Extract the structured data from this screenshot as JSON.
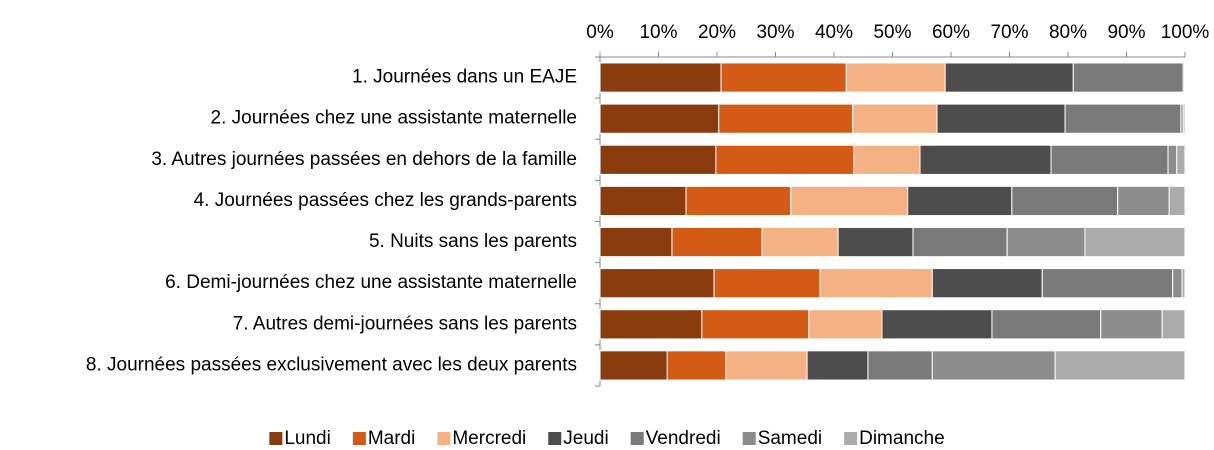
{
  "chart_data": {
    "type": "stacked_bar_horizontal",
    "categories": [
      "1. Journées dans un EAJE",
      "2. Journées chez une assistante maternelle",
      "3. Autres journées passées en dehors de la famille",
      "4. Journées passées chez les grands-parents",
      "5. Nuits sans les parents",
      "6. Demi-journées chez une assistante maternelle",
      "7. Autres demi-journées sans les parents",
      "8. Journées passées exclusivement avec les deux parents"
    ],
    "series": [
      {
        "name": "Lundi",
        "color": "#8b3c0f",
        "values": [
          20.7,
          20.3,
          19.8,
          14.7,
          12.3,
          19.5,
          17.4,
          11.5
        ]
      },
      {
        "name": "Mardi",
        "color": "#d35b16",
        "values": [
          21.4,
          22.9,
          23.6,
          17.9,
          15.4,
          18.1,
          18.3,
          10.0
        ]
      },
      {
        "name": "Mercredi",
        "color": "#f4b183",
        "values": [
          16.9,
          14.4,
          11.3,
          20.0,
          13.0,
          19.2,
          12.5,
          13.9
        ]
      },
      {
        "name": "Jeudi",
        "color": "#4d4d4d",
        "values": [
          21.9,
          21.9,
          22.4,
          17.8,
          12.8,
          18.8,
          18.8,
          10.4
        ]
      },
      {
        "name": "Vendredi",
        "color": "#7a7a7a",
        "values": [
          18.8,
          19.8,
          20.0,
          18.1,
          16.1,
          22.3,
          18.6,
          11.0
        ]
      },
      {
        "name": "Samedi",
        "color": "#8c8c8c",
        "values": [
          0.2,
          0.4,
          1.5,
          8.8,
          13.3,
          1.6,
          10.5,
          21.0
        ]
      },
      {
        "name": "Dimanche",
        "color": "#ababab",
        "values": [
          0.1,
          0.3,
          1.4,
          2.7,
          17.1,
          0.5,
          3.9,
          22.2
        ]
      }
    ],
    "xlim": [
      0,
      100
    ],
    "xticks": [
      {
        "value": 0,
        "label": "0%"
      },
      {
        "value": 10,
        "label": "10%"
      },
      {
        "value": 20,
        "label": "20%"
      },
      {
        "value": 30,
        "label": "30%"
      },
      {
        "value": 40,
        "label": "40%"
      },
      {
        "value": 50,
        "label": "50%"
      },
      {
        "value": 60,
        "label": "60%"
      },
      {
        "value": 70,
        "label": "70%"
      },
      {
        "value": 80,
        "label": "80%"
      },
      {
        "value": 90,
        "label": "90%"
      },
      {
        "value": 100,
        "label": "100%"
      }
    ],
    "legend": "bottom"
  }
}
